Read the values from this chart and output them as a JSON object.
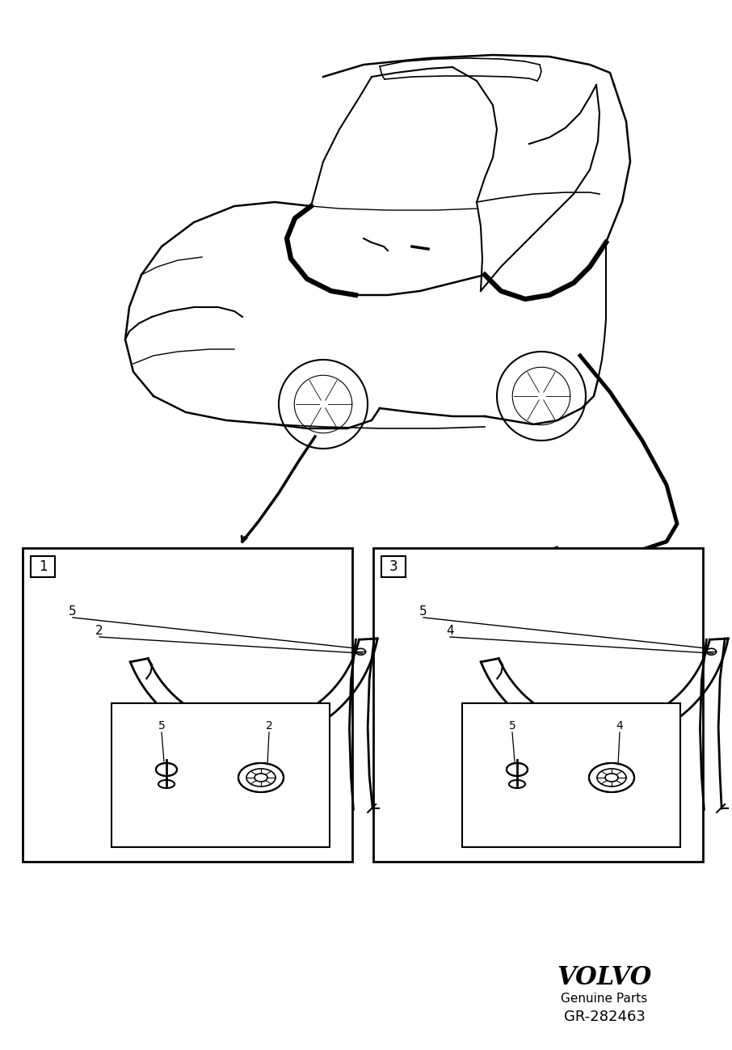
{
  "bg_color": "#ffffff",
  "line_color": "#000000",
  "volvo_text": "VOLVO",
  "genuine_parts_text": "Genuine Parts",
  "part_number": "GR-282463",
  "box1_label": "1",
  "box2_label": "3",
  "fig_width": 9.06,
  "fig_height": 12.99,
  "dpi": 100
}
